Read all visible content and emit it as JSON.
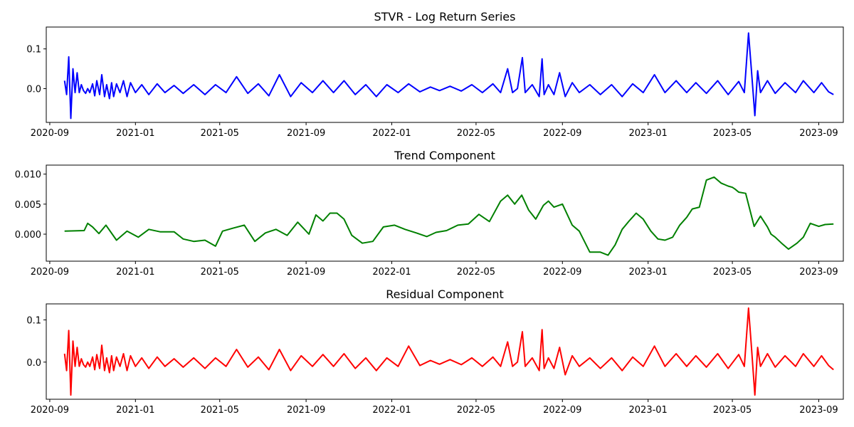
{
  "chart_data": [
    {
      "type": "line",
      "title": "STVR - Log Return Series",
      "xlabel": "",
      "ylabel": "",
      "color": "#0000ff",
      "xlim": [
        "2020-08-27",
        "2023-10-06"
      ],
      "ylim": [
        -0.085,
        0.155
      ],
      "yticks": [
        0.0,
        0.1
      ],
      "ytick_labels": [
        "0.0",
        "0.1"
      ],
      "series": [
        {
          "x": [
            "2020-09-22",
            "2020-09-25",
            "2020-09-28",
            "2020-10-01",
            "2020-10-04",
            "2020-10-07",
            "2020-10-10",
            "2020-10-13",
            "2020-10-16",
            "2020-10-19",
            "2020-10-22",
            "2020-10-25",
            "2020-10-28",
            "2020-11-01",
            "2020-11-04",
            "2020-11-07",
            "2020-11-11",
            "2020-11-14",
            "2020-11-18",
            "2020-11-21",
            "2020-11-25",
            "2020-11-28",
            "2020-12-01",
            "2020-12-05",
            "2020-12-10",
            "2020-12-15",
            "2020-12-20",
            "2020-12-25",
            "2021-01-01",
            "2021-01-10",
            "2021-01-20",
            "2021-02-01",
            "2021-02-12",
            "2021-02-25",
            "2021-03-10",
            "2021-03-25",
            "2021-04-10",
            "2021-04-25",
            "2021-05-10",
            "2021-05-25",
            "2021-06-10",
            "2021-06-25",
            "2021-07-10",
            "2021-07-25",
            "2021-08-10",
            "2021-08-25",
            "2021-09-10",
            "2021-09-25",
            "2021-10-10",
            "2021-10-25",
            "2021-11-10",
            "2021-11-25",
            "2021-12-10",
            "2021-12-25",
            "2022-01-10",
            "2022-01-25",
            "2022-02-10",
            "2022-02-25",
            "2022-03-10",
            "2022-03-25",
            "2022-04-10",
            "2022-04-25",
            "2022-05-10",
            "2022-05-25",
            "2022-06-05",
            "2022-06-15",
            "2022-06-22",
            "2022-06-29",
            "2022-07-06",
            "2022-07-10",
            "2022-07-20",
            "2022-07-30",
            "2022-08-03",
            "2022-08-06",
            "2022-08-12",
            "2022-08-20",
            "2022-08-28",
            "2022-09-05",
            "2022-09-15",
            "2022-09-25",
            "2022-10-10",
            "2022-10-25",
            "2022-11-10",
            "2022-11-25",
            "2022-12-10",
            "2022-12-25",
            "2023-01-10",
            "2023-01-25",
            "2023-02-10",
            "2023-02-25",
            "2023-03-10",
            "2023-03-25",
            "2023-04-10",
            "2023-04-25",
            "2023-05-10",
            "2023-05-18",
            "2023-05-24",
            "2023-05-28",
            "2023-06-02",
            "2023-06-06",
            "2023-06-10",
            "2023-06-20",
            "2023-07-01",
            "2023-07-15",
            "2023-07-30",
            "2023-08-10",
            "2023-08-25",
            "2023-09-05",
            "2023-09-15",
            "2023-09-22"
          ],
          "y": [
            0.02,
            -0.015,
            0.08,
            -0.075,
            0.05,
            -0.01,
            0.04,
            -0.01,
            0.01,
            -0.005,
            -0.012,
            0.0,
            -0.01,
            0.012,
            -0.018,
            0.02,
            -0.015,
            0.035,
            -0.02,
            0.01,
            -0.025,
            0.015,
            -0.02,
            0.012,
            -0.01,
            0.02,
            -0.02,
            0.015,
            -0.01,
            0.01,
            -0.015,
            0.012,
            -0.01,
            0.008,
            -0.012,
            0.01,
            -0.015,
            0.01,
            -0.01,
            0.03,
            -0.012,
            0.012,
            -0.018,
            0.035,
            -0.02,
            0.015,
            -0.01,
            0.02,
            -0.01,
            0.02,
            -0.015,
            0.01,
            -0.02,
            0.01,
            -0.01,
            0.012,
            -0.008,
            0.004,
            -0.005,
            0.006,
            -0.006,
            0.01,
            -0.01,
            0.012,
            -0.01,
            0.05,
            -0.01,
            0.0,
            0.078,
            -0.01,
            0.01,
            -0.02,
            0.075,
            -0.015,
            0.01,
            -0.015,
            0.04,
            -0.02,
            0.015,
            -0.01,
            0.01,
            -0.015,
            0.01,
            -0.02,
            0.012,
            -0.01,
            0.035,
            -0.01,
            0.02,
            -0.01,
            0.015,
            -0.012,
            0.02,
            -0.015,
            0.018,
            -0.01,
            0.14,
            0.05,
            -0.068,
            0.045,
            -0.01,
            0.02,
            -0.012,
            0.015,
            -0.01,
            0.02,
            -0.01,
            0.015,
            -0.008,
            -0.015
          ]
        }
      ]
    },
    {
      "type": "line",
      "title": "Trend Component",
      "xlabel": "",
      "ylabel": "",
      "color": "#008000",
      "xlim": [
        "2020-08-27",
        "2023-10-06"
      ],
      "ylim": [
        -0.0045,
        0.0115
      ],
      "yticks": [
        0.0,
        0.005,
        0.01
      ],
      "ytick_labels": [
        "0.000",
        "0.005",
        "0.010"
      ],
      "series": [
        {
          "x": [
            "2020-09-22",
            "2020-10-20",
            "2020-10-25",
            "2020-11-01",
            "2020-11-10",
            "2020-11-20",
            "2020-12-05",
            "2020-12-20",
            "2021-01-05",
            "2021-01-20",
            "2021-02-05",
            "2021-02-25",
            "2021-03-10",
            "2021-03-25",
            "2021-04-10",
            "2021-04-25",
            "2021-05-05",
            "2021-05-20",
            "2021-06-05",
            "2021-06-20",
            "2021-07-05",
            "2021-07-20",
            "2021-08-05",
            "2021-08-20",
            "2021-08-28",
            "2021-09-05",
            "2021-09-15",
            "2021-09-25",
            "2021-10-05",
            "2021-10-15",
            "2021-10-25",
            "2021-11-05",
            "2021-11-20",
            "2021-12-05",
            "2021-12-20",
            "2022-01-05",
            "2022-01-20",
            "2022-02-05",
            "2022-02-20",
            "2022-03-05",
            "2022-03-20",
            "2022-04-05",
            "2022-04-20",
            "2022-05-05",
            "2022-05-20",
            "2022-06-05",
            "2022-06-15",
            "2022-06-25",
            "2022-07-05",
            "2022-07-15",
            "2022-07-25",
            "2022-08-05",
            "2022-08-12",
            "2022-08-20",
            "2022-09-01",
            "2022-09-15",
            "2022-09-25",
            "2022-10-10",
            "2022-10-25",
            "2022-11-05",
            "2022-11-15",
            "2022-11-25",
            "2022-12-05",
            "2022-12-15",
            "2022-12-25",
            "2023-01-05",
            "2023-01-15",
            "2023-01-25",
            "2023-02-05",
            "2023-02-15",
            "2023-02-25",
            "2023-03-05",
            "2023-03-15",
            "2023-03-25",
            "2023-04-05",
            "2023-04-15",
            "2023-04-25",
            "2023-05-01",
            "2023-05-05",
            "2023-05-10",
            "2023-05-20",
            "2023-06-01",
            "2023-06-10",
            "2023-06-20",
            "2023-06-25",
            "2023-07-01",
            "2023-07-10",
            "2023-07-20",
            "2023-08-01",
            "2023-08-10",
            "2023-08-20",
            "2023-09-01",
            "2023-09-10",
            "2023-09-22"
          ],
          "y": [
            0.0005,
            0.0006,
            0.0018,
            0.0012,
            0.0001,
            0.0015,
            -0.001,
            0.0005,
            -0.0005,
            0.0008,
            0.0004,
            0.0004,
            -0.0008,
            -0.0012,
            -0.001,
            -0.002,
            0.0005,
            0.001,
            0.0015,
            -0.0012,
            0.0002,
            0.0008,
            -0.0002,
            0.002,
            0.001,
            0.0,
            0.0032,
            0.0022,
            0.0035,
            0.0035,
            0.0025,
            -0.0002,
            -0.0015,
            -0.0012,
            0.0012,
            0.0015,
            0.0008,
            0.0002,
            -0.0004,
            0.0003,
            0.0006,
            0.0015,
            0.0017,
            0.0033,
            0.0021,
            0.0055,
            0.0065,
            0.005,
            0.0065,
            0.004,
            0.0025,
            0.0048,
            0.0055,
            0.0045,
            0.005,
            0.0015,
            0.0005,
            -0.003,
            -0.003,
            -0.0035,
            -0.0018,
            0.0008,
            0.0022,
            0.0035,
            0.0025,
            0.0005,
            -0.0008,
            -0.001,
            -0.0005,
            0.0015,
            0.0028,
            0.0042,
            0.0045,
            0.009,
            0.0095,
            0.0085,
            0.008,
            0.0078,
            0.0075,
            0.007,
            0.0068,
            0.0013,
            0.003,
            0.0012,
            0.0,
            -0.0005,
            -0.0015,
            -0.0025,
            -0.0015,
            -0.0005,
            0.0018,
            0.0013,
            0.0016,
            0.0017
          ]
        }
      ]
    },
    {
      "type": "line",
      "title": "Residual Component",
      "xlabel": "",
      "ylabel": "",
      "color": "#ff0000",
      "xlim": [
        "2020-08-27",
        "2023-10-06"
      ],
      "ylim": [
        -0.088,
        0.138
      ],
      "yticks": [
        0.0,
        0.1
      ],
      "ytick_labels": [
        "0.0",
        "0.1"
      ],
      "series": [
        {
          "x": [
            "2020-09-22",
            "2020-09-25",
            "2020-09-28",
            "2020-10-01",
            "2020-10-04",
            "2020-10-07",
            "2020-10-10",
            "2020-10-13",
            "2020-10-16",
            "2020-10-19",
            "2020-10-22",
            "2020-10-25",
            "2020-10-28",
            "2020-11-01",
            "2020-11-04",
            "2020-11-07",
            "2020-11-11",
            "2020-11-14",
            "2020-11-18",
            "2020-11-21",
            "2020-11-25",
            "2020-11-28",
            "2020-12-01",
            "2020-12-05",
            "2020-12-10",
            "2020-12-15",
            "2020-12-20",
            "2020-12-25",
            "2021-01-01",
            "2021-01-10",
            "2021-01-20",
            "2021-02-01",
            "2021-02-12",
            "2021-02-25",
            "2021-03-10",
            "2021-03-25",
            "2021-04-10",
            "2021-04-25",
            "2021-05-10",
            "2021-05-25",
            "2021-06-10",
            "2021-06-25",
            "2021-07-10",
            "2021-07-25",
            "2021-08-10",
            "2021-08-25",
            "2021-09-10",
            "2021-09-25",
            "2021-10-10",
            "2021-10-25",
            "2021-11-10",
            "2021-11-25",
            "2021-12-10",
            "2021-12-25",
            "2022-01-10",
            "2022-01-25",
            "2022-02-10",
            "2022-02-25",
            "2022-03-10",
            "2022-03-25",
            "2022-04-10",
            "2022-04-25",
            "2022-05-10",
            "2022-05-25",
            "2022-06-05",
            "2022-06-15",
            "2022-06-22",
            "2022-06-29",
            "2022-07-06",
            "2022-07-10",
            "2022-07-20",
            "2022-07-30",
            "2022-08-03",
            "2022-08-06",
            "2022-08-12",
            "2022-08-20",
            "2022-08-28",
            "2022-09-05",
            "2022-09-15",
            "2022-09-25",
            "2022-10-10",
            "2022-10-25",
            "2022-11-10",
            "2022-11-25",
            "2022-12-10",
            "2022-12-25",
            "2023-01-10",
            "2023-01-25",
            "2023-02-10",
            "2023-02-25",
            "2023-03-10",
            "2023-03-25",
            "2023-04-10",
            "2023-04-25",
            "2023-05-10",
            "2023-05-18",
            "2023-05-24",
            "2023-05-28",
            "2023-06-02",
            "2023-06-06",
            "2023-06-10",
            "2023-06-20",
            "2023-07-01",
            "2023-07-15",
            "2023-07-30",
            "2023-08-10",
            "2023-08-25",
            "2023-09-05",
            "2023-09-15",
            "2023-09-22"
          ],
          "y": [
            0.02,
            -0.02,
            0.075,
            -0.078,
            0.05,
            -0.01,
            0.035,
            -0.01,
            0.008,
            -0.006,
            -0.012,
            0.0,
            -0.01,
            0.012,
            -0.018,
            0.018,
            -0.015,
            0.04,
            -0.02,
            0.01,
            -0.025,
            0.015,
            -0.02,
            0.012,
            -0.01,
            0.02,
            -0.02,
            0.015,
            -0.01,
            0.01,
            -0.015,
            0.012,
            -0.01,
            0.008,
            -0.012,
            0.01,
            -0.015,
            0.01,
            -0.01,
            0.03,
            -0.012,
            0.012,
            -0.018,
            0.03,
            -0.02,
            0.015,
            -0.01,
            0.018,
            -0.01,
            0.02,
            -0.015,
            0.01,
            -0.02,
            0.01,
            -0.01,
            0.038,
            -0.008,
            0.004,
            -0.005,
            0.006,
            -0.006,
            0.01,
            -0.01,
            0.012,
            -0.01,
            0.048,
            -0.01,
            0.0,
            0.072,
            -0.01,
            0.01,
            -0.02,
            0.077,
            -0.015,
            0.01,
            -0.015,
            0.035,
            -0.03,
            0.015,
            -0.01,
            0.01,
            -0.015,
            0.01,
            -0.02,
            0.012,
            -0.01,
            0.038,
            -0.01,
            0.02,
            -0.01,
            0.015,
            -0.012,
            0.02,
            -0.015,
            0.018,
            -0.01,
            0.128,
            0.04,
            -0.078,
            0.035,
            -0.01,
            0.02,
            -0.012,
            0.015,
            -0.01,
            0.02,
            -0.01,
            0.015,
            -0.008,
            -0.018
          ]
        }
      ]
    }
  ],
  "shared_xticks": [
    "2020-09-01",
    "2021-01-01",
    "2021-05-01",
    "2021-09-01",
    "2022-01-01",
    "2022-05-01",
    "2022-09-01",
    "2023-01-01",
    "2023-05-01",
    "2023-09-01"
  ],
  "shared_xtick_labels": [
    "2020-09",
    "2021-01",
    "2021-05",
    "2021-09",
    "2022-01",
    "2022-05",
    "2022-09",
    "2023-01",
    "2023-05",
    "2023-09"
  ]
}
